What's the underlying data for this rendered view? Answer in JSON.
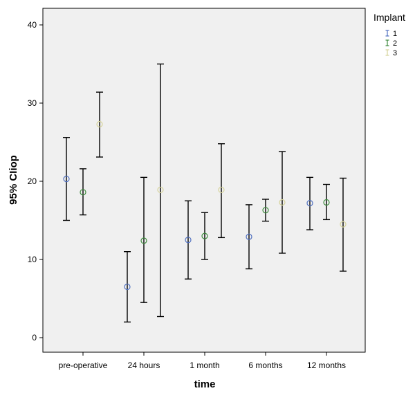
{
  "chart_data": {
    "type": "errorbar",
    "xlabel": "time",
    "ylabel": "95% CIiop",
    "ylim": [
      0,
      42
    ],
    "yticks": [
      0,
      10,
      20,
      30,
      40
    ],
    "categories": [
      "pre-operative",
      "24 hours",
      "1 month",
      "6 months",
      "12 months"
    ],
    "legend": {
      "title": "Implant",
      "placement": "top-right"
    },
    "grid": false,
    "series": [
      {
        "name": "1",
        "color": "#4f6fbf",
        "mean": [
          20.3,
          6.5,
          12.5,
          12.9,
          17.2
        ],
        "lower": [
          15.0,
          2.0,
          7.5,
          8.8,
          13.8
        ],
        "upper": [
          25.6,
          11.0,
          17.5,
          17.0,
          20.5
        ]
      },
      {
        "name": "2",
        "color": "#3d8a3d",
        "mean": [
          18.6,
          12.4,
          13.0,
          16.3,
          17.3
        ],
        "lower": [
          15.7,
          4.5,
          10.0,
          14.9,
          15.1
        ],
        "upper": [
          21.6,
          20.5,
          16.0,
          17.7,
          19.6
        ]
      },
      {
        "name": "3",
        "color": "#d6d39a",
        "mean": [
          27.3,
          18.9,
          18.9,
          17.3,
          14.5
        ],
        "lower": [
          23.1,
          2.7,
          12.8,
          10.8,
          8.5
        ],
        "upper": [
          31.4,
          35.0,
          24.8,
          23.8,
          20.4
        ]
      }
    ]
  }
}
